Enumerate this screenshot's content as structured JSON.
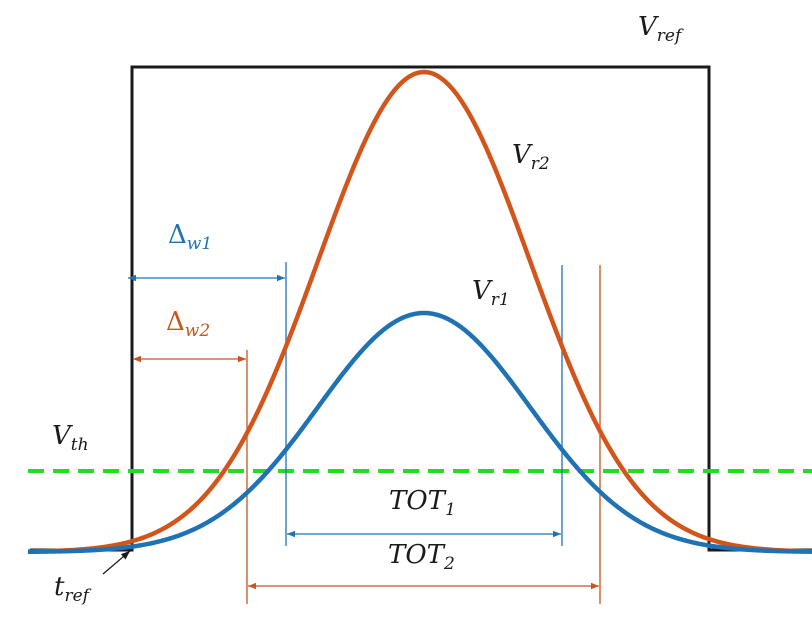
{
  "labels": {
    "v_ref": {
      "main": "V",
      "sub": "ref"
    },
    "v_r2": {
      "main": "V",
      "sub": "r2"
    },
    "v_r1": {
      "main": "V",
      "sub": "r1"
    },
    "delta_w1": {
      "main": "Δ",
      "sub": "w1"
    },
    "delta_w2": {
      "main": "Δ",
      "sub": "w2"
    },
    "v_th": {
      "main": "V",
      "sub": "th"
    },
    "tot1": {
      "main": "TOT",
      "sub": "1"
    },
    "tot2": {
      "main": "TOT",
      "sub": "2"
    },
    "t_ref": {
      "main": "t",
      "sub": "ref"
    }
  },
  "colors": {
    "reference_pulse": "#1a1a1a",
    "vr2_curve": "#d2561c",
    "vr1_curve": "#1f73b4",
    "threshold": "#22dd22",
    "annotation_blue": "#1f73b4",
    "annotation_orange": "#c8541e"
  }
}
